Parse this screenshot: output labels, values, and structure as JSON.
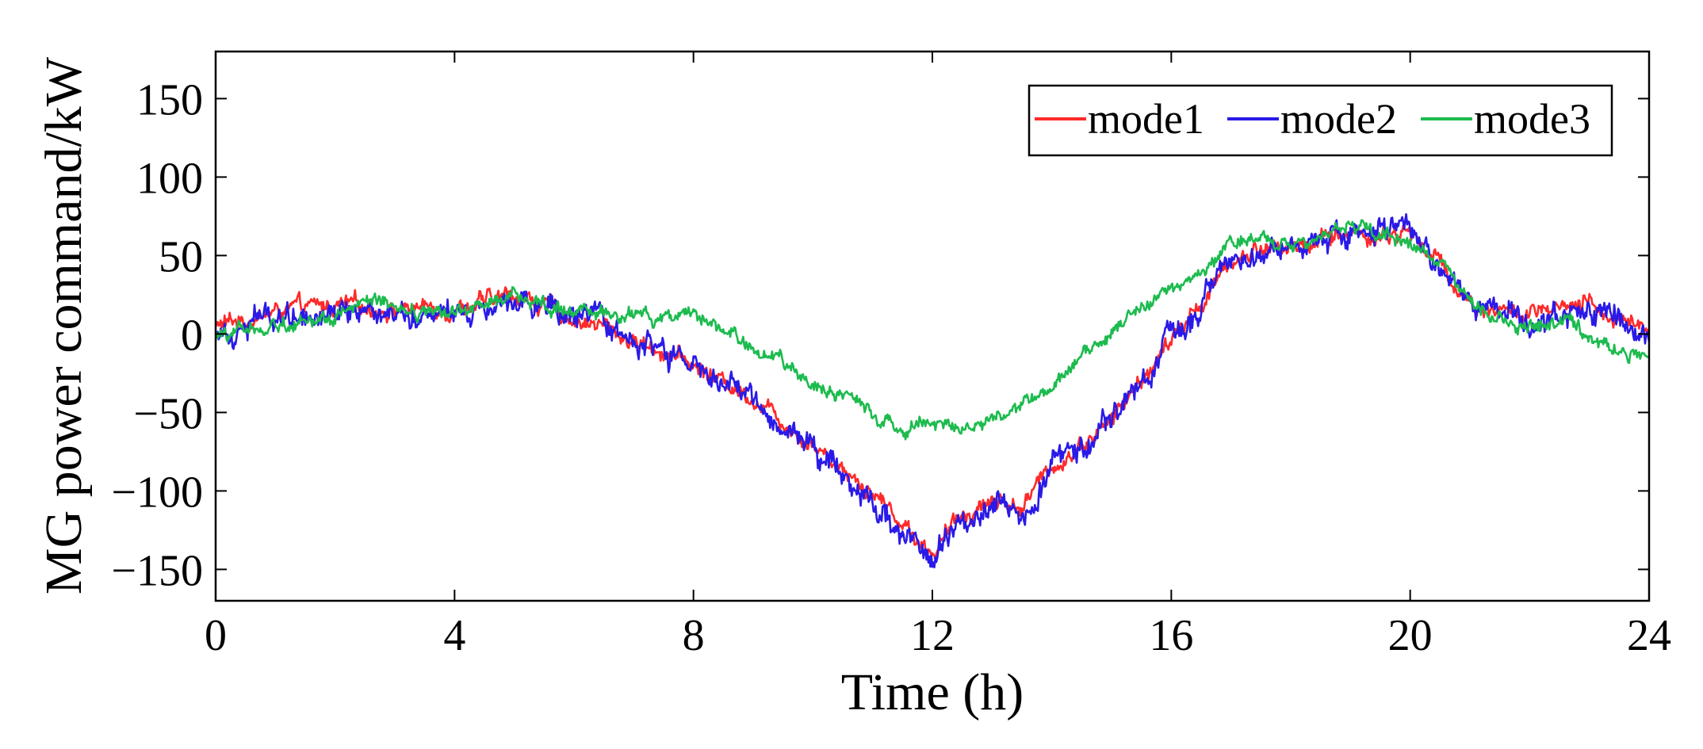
{
  "chart_data": {
    "type": "line",
    "title": "",
    "xlabel": "Time (h)",
    "ylabel": "MG power command/kW",
    "xlim": [
      0,
      24
    ],
    "ylim": [
      -170,
      180
    ],
    "x_ticks": [
      0,
      4,
      8,
      12,
      16,
      20,
      24
    ],
    "y_ticks": [
      -150,
      -100,
      -50,
      0,
      50,
      100,
      150
    ],
    "x_tick_labels": [
      "0",
      "4",
      "8",
      "12",
      "16",
      "20",
      "24"
    ],
    "y_tick_labels": [
      "−150",
      "−100",
      "−50",
      "0",
      "50",
      "100",
      "150"
    ],
    "grid": false,
    "legend_position": "top-right",
    "series": [
      {
        "name": "mode1",
        "color": "#ff2a2a",
        "noise": 6,
        "points": [
          [
            0,
            5
          ],
          [
            1,
            14
          ],
          [
            2,
            18
          ],
          [
            3,
            16
          ],
          [
            4,
            17
          ],
          [
            4.5,
            20
          ],
          [
            5,
            25
          ],
          [
            5.5,
            18
          ],
          [
            6,
            10
          ],
          [
            6.5,
            5
          ],
          [
            7,
            -5
          ],
          [
            7.5,
            -10
          ],
          [
            8,
            -20
          ],
          [
            8.5,
            -30
          ],
          [
            9,
            -40
          ],
          [
            9.5,
            -55
          ],
          [
            10,
            -70
          ],
          [
            10.5,
            -85
          ],
          [
            11,
            -100
          ],
          [
            11.5,
            -120
          ],
          [
            12,
            -140
          ],
          [
            12.5,
            -115
          ],
          [
            13,
            -105
          ],
          [
            13.5,
            -110
          ],
          [
            14,
            -85
          ],
          [
            14.5,
            -70
          ],
          [
            15,
            -55
          ],
          [
            15.5,
            -30
          ],
          [
            16,
            -5
          ],
          [
            16.5,
            20
          ],
          [
            17,
            45
          ],
          [
            17.5,
            55
          ],
          [
            18,
            55
          ],
          [
            18.5,
            60
          ],
          [
            19,
            65
          ],
          [
            19.5,
            62
          ],
          [
            20,
            65
          ],
          [
            20.5,
            45
          ],
          [
            21,
            20
          ],
          [
            21.5,
            15
          ],
          [
            22,
            12
          ],
          [
            22.5,
            14
          ],
          [
            23,
            18
          ],
          [
            23.5,
            10
          ],
          [
            24,
            5
          ]
        ]
      },
      {
        "name": "mode2",
        "color": "#2a1ae8",
        "noise": 9,
        "points": [
          [
            0,
            3
          ],
          [
            1,
            12
          ],
          [
            2,
            17
          ],
          [
            3,
            15
          ],
          [
            4,
            16
          ],
          [
            4.5,
            19
          ],
          [
            5,
            26
          ],
          [
            5.5,
            17
          ],
          [
            6,
            9
          ],
          [
            6.5,
            4
          ],
          [
            7,
            -5
          ],
          [
            7.5,
            -12
          ],
          [
            8,
            -22
          ],
          [
            8.5,
            -32
          ],
          [
            9,
            -42
          ],
          [
            9.5,
            -58
          ],
          [
            10,
            -72
          ],
          [
            10.5,
            -88
          ],
          [
            11,
            -105
          ],
          [
            11.5,
            -125
          ],
          [
            12,
            -145
          ],
          [
            12.5,
            -118
          ],
          [
            13,
            -105
          ],
          [
            13.5,
            -112
          ],
          [
            14,
            -85
          ],
          [
            14.5,
            -68
          ],
          [
            15,
            -55
          ],
          [
            15.5,
            -30
          ],
          [
            16,
            -5
          ],
          [
            16.5,
            20
          ],
          [
            17,
            45
          ],
          [
            17.5,
            56
          ],
          [
            18,
            55
          ],
          [
            18.5,
            60
          ],
          [
            19,
            68
          ],
          [
            19.5,
            62
          ],
          [
            20,
            66
          ],
          [
            20.5,
            40
          ],
          [
            21,
            18
          ],
          [
            21.5,
            12
          ],
          [
            22,
            8
          ],
          [
            22.5,
            10
          ],
          [
            23,
            12
          ],
          [
            23.5,
            5
          ],
          [
            24,
            2
          ]
        ]
      },
      {
        "name": "mode3",
        "color": "#1dbb4e",
        "noise": 5,
        "points": [
          [
            0,
            -2
          ],
          [
            1,
            6
          ],
          [
            2,
            12
          ],
          [
            2.5,
            20
          ],
          [
            3,
            15
          ],
          [
            4,
            13
          ],
          [
            4.5,
            18
          ],
          [
            5,
            25
          ],
          [
            5.5,
            20
          ],
          [
            6,
            14
          ],
          [
            6.5,
            10
          ],
          [
            7,
            12
          ],
          [
            7.5,
            10
          ],
          [
            8,
            8
          ],
          [
            8.5,
            5
          ],
          [
            9,
            -10
          ],
          [
            9.5,
            -20
          ],
          [
            10,
            -30
          ],
          [
            10.5,
            -40
          ],
          [
            11,
            -50
          ],
          [
            11.5,
            -60
          ],
          [
            12,
            -55
          ],
          [
            12.5,
            -62
          ],
          [
            13,
            -55
          ],
          [
            13.5,
            -45
          ],
          [
            14,
            -30
          ],
          [
            14.5,
            -15
          ],
          [
            15,
            0
          ],
          [
            15.5,
            18
          ],
          [
            16,
            28
          ],
          [
            16.5,
            40
          ],
          [
            17,
            58
          ],
          [
            17.5,
            62
          ],
          [
            18,
            58
          ],
          [
            18.5,
            60
          ],
          [
            19,
            70
          ],
          [
            19.5,
            62
          ],
          [
            20,
            60
          ],
          [
            20.5,
            45
          ],
          [
            21,
            20
          ],
          [
            21.5,
            10
          ],
          [
            22,
            5
          ],
          [
            22.5,
            8
          ],
          [
            23,
            0
          ],
          [
            23.5,
            -10
          ],
          [
            24,
            -15
          ]
        ]
      }
    ]
  }
}
